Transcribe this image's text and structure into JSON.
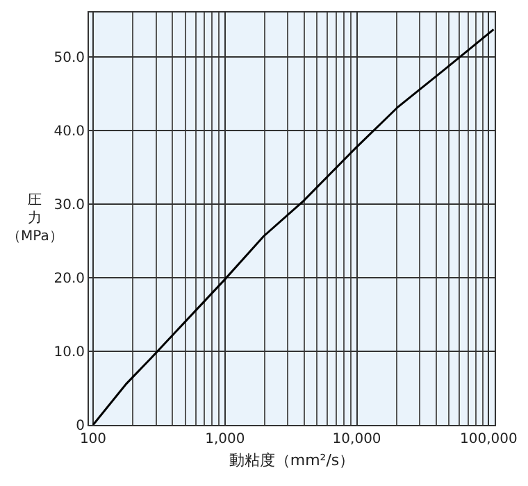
{
  "chart_data": {
    "type": "line",
    "xlabel": "動粘度（mm²/s）",
    "ylabel": "圧力（MPa）",
    "log": "x",
    "x": [
      100,
      179,
      273,
      980,
      1960,
      3930,
      9930,
      20600,
      46600,
      109000
    ],
    "series": [
      {
        "color": "#000000",
        "values": [
          0,
          5.6,
          9.0,
          19.6,
          25.6,
          30.4,
          37.7,
          43.2,
          48.3,
          53.7
        ]
      }
    ],
    "xlim": [
      93,
      111000
    ],
    "xticks": [
      {
        "value": 100,
        "label": "100"
      },
      {
        "value": 1000,
        "label": "1,000"
      },
      {
        "value": 10000,
        "label": "10,000"
      },
      {
        "value": 100000,
        "label": "100,000"
      }
    ],
    "ylim": [
      0,
      56
    ],
    "yticks": [
      0,
      {
        "value": 10,
        "label": "10.0"
      },
      {
        "value": 20,
        "label": "20.0"
      },
      {
        "value": 30,
        "label": "30.0"
      },
      {
        "value": 40,
        "label": "40.0"
      },
      {
        "value": 50,
        "label": "50.0"
      }
    ],
    "grid": true,
    "legend": false,
    "marker": "none",
    "line_style": "solid"
  }
}
